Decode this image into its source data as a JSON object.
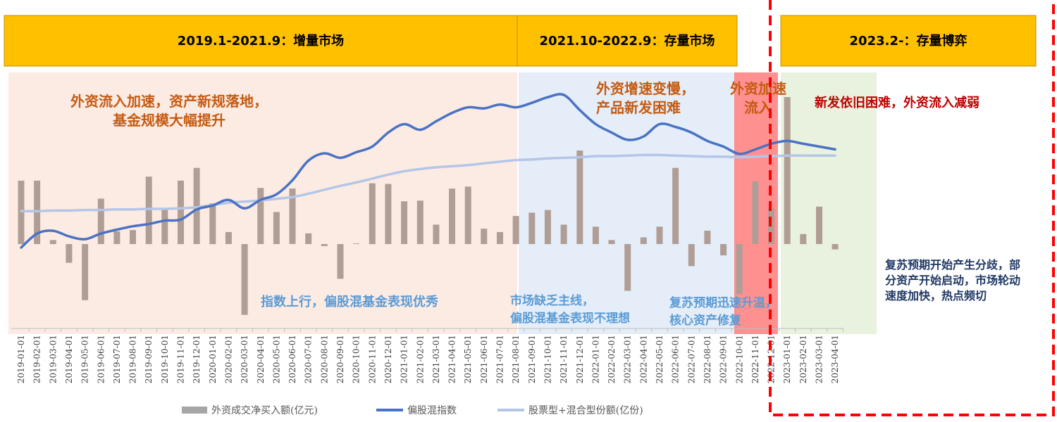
{
  "chart_data": {
    "type": "bar+line",
    "x": [
      "2019-01-01",
      "2019-02-01",
      "2019-03-01",
      "2019-04-01",
      "2019-05-01",
      "2019-06-01",
      "2019-07-01",
      "2019-08-01",
      "2019-09-01",
      "2019-10-01",
      "2019-11-01",
      "2019-12-01",
      "2020-01-01",
      "2020-02-01",
      "2020-03-01",
      "2020-04-01",
      "2020-05-01",
      "2020-06-01",
      "2020-07-01",
      "2020-08-01",
      "2020-09-01",
      "2020-10-01",
      "2020-11-01",
      "2020-12-01",
      "2021-01-01",
      "2021-02-01",
      "2021-03-01",
      "2021-04-01",
      "2021-05-01",
      "2021-06-01",
      "2021-07-01",
      "2021-08-01",
      "2021-09-01",
      "2021-10-01",
      "2021-11-01",
      "2021-12-01",
      "2022-01-01",
      "2022-02-01",
      "2022-03-01",
      "2022-04-01",
      "2022-05-01",
      "2022-06-01",
      "2022-07-01",
      "2022-08-01",
      "2022-09-01",
      "2022-10-01",
      "2022-11-01",
      "2022-12-01",
      "2023-01-01",
      "2023-02-01",
      "2023-03-01",
      "2023-04-01"
    ],
    "series": [
      {
        "name": "外资成交净买入额(亿元)",
        "type": "bar",
        "color": "#b09e96",
        "values": [
          950,
          950,
          60,
          -280,
          -840,
          680,
          190,
          210,
          1010,
          510,
          950,
          1140,
          610,
          180,
          -1060,
          840,
          480,
          830,
          160,
          -30,
          -520,
          10,
          910,
          900,
          640,
          650,
          290,
          830,
          860,
          230,
          180,
          420,
          470,
          510,
          290,
          1400,
          260,
          60,
          -700,
          100,
          260,
          1140,
          -330,
          200,
          -170,
          -750,
          940,
          550,
          2200,
          150,
          560,
          -80
        ]
      },
      {
        "name": "偏股混指数",
        "type": "line",
        "color": "#4a72c4",
        "values": [
          80,
          105,
          110,
          100,
          95,
          105,
          112,
          118,
          122,
          128,
          130,
          148,
          155,
          165,
          150,
          165,
          175,
          200,
          235,
          248,
          240,
          250,
          260,
          285,
          300,
          290,
          305,
          320,
          330,
          328,
          335,
          330,
          338,
          348,
          352,
          325,
          300,
          285,
          272,
          278,
          300,
          295,
          285,
          270,
          260,
          247,
          255,
          265,
          270,
          265,
          260,
          255
        ]
      },
      {
        "name": "股票型+混合型份额(亿份)",
        "type": "line",
        "color": "#b4c6e7",
        "values": [
          145,
          145,
          146,
          146,
          147,
          147,
          148,
          148,
          149,
          149,
          150,
          152,
          156,
          160,
          162,
          164,
          167,
          170,
          176,
          183,
          190,
          196,
          203,
          210,
          216,
          220,
          223,
          225,
          227,
          230,
          233,
          236,
          237,
          239,
          240,
          241,
          243,
          243,
          244,
          245,
          245,
          244,
          243,
          242,
          242,
          241,
          242,
          243,
          244,
          244,
          244,
          244
        ]
      }
    ],
    "legend": "bottom",
    "grid": false
  },
  "periods": [
    {
      "label": "2019.1-2021.9：增量市场",
      "color": "#fcebe3"
    },
    {
      "label": "2021.10-2022.9：存量市场",
      "color": "#e4edf8"
    },
    {
      "label": "2023.2-：存量博弈",
      "color": "#e8f2de"
    }
  ],
  "header_color": "#ffc000",
  "annotations": {
    "left_top_line1": "外资流入加速，资产新规落地，",
    "left_top_line2": "基金规模大幅提升",
    "left_bottom": "指数上行，偏股混基金表现优秀",
    "mid_top_line1": "外资增速变慢，",
    "mid_top_line2": "产品新发困难",
    "mid_bottom_line1": "市场缺乏主线，",
    "mid_bottom_line2": "偏股混基金表现不理想",
    "red_top_line1": "外资加速",
    "red_top_line2": "流入",
    "recovery_line1": "复苏预期迅速升温，",
    "recovery_line2": "核心资产修复",
    "right_top": "新发依旧困难，外资流入减弱",
    "right_bottom_line1": "复苏预期开始产生分歧，部",
    "right_bottom_line2": "分资产开始启动，市场轮动",
    "right_bottom_line3": "速度加快，热点频切"
  },
  "colors": {
    "orange_text": "#c55a11",
    "blue_text": "#5b9bd5",
    "dark_red_text": "#c00000",
    "navy_text": "#1f3864",
    "red_band": "#ff7c7c",
    "dashed_box": "#ff0000"
  }
}
